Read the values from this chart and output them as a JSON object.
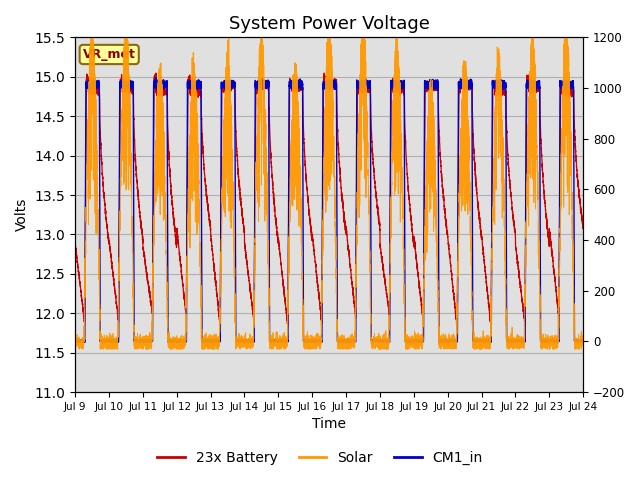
{
  "title": "System Power Voltage",
  "xlabel": "Time",
  "ylabel": "Volts",
  "ylim_left": [
    11.0,
    15.5
  ],
  "ylim_right": [
    -200,
    1200
  ],
  "xtick_labels": [
    "Jul 9",
    "Jul 10",
    "Jul 11",
    "Jul 12",
    "Jul 13",
    "Jul 14",
    "Jul 15",
    "Jul 16",
    "Jul 17",
    "Jul 18",
    "Jul 19",
    "Jul 20",
    "Jul 21",
    "Jul 22",
    "Jul 23",
    "Jul 24"
  ],
  "ytick_left": [
    11.0,
    11.5,
    12.0,
    12.5,
    13.0,
    13.5,
    14.0,
    14.5,
    15.0,
    15.5
  ],
  "ytick_right": [
    -200,
    0,
    200,
    400,
    600,
    800,
    1000,
    1200
  ],
  "color_battery": "#cc0000",
  "color_solar": "#ff9900",
  "color_cm1": "#0000cc",
  "annotation_text": "VR_met",
  "legend_labels": [
    "23x Battery",
    "Solar",
    "CM1_in"
  ],
  "bg_color": "#e0e0e0",
  "grid_color": "#c8c8c8",
  "title_fontsize": 13
}
